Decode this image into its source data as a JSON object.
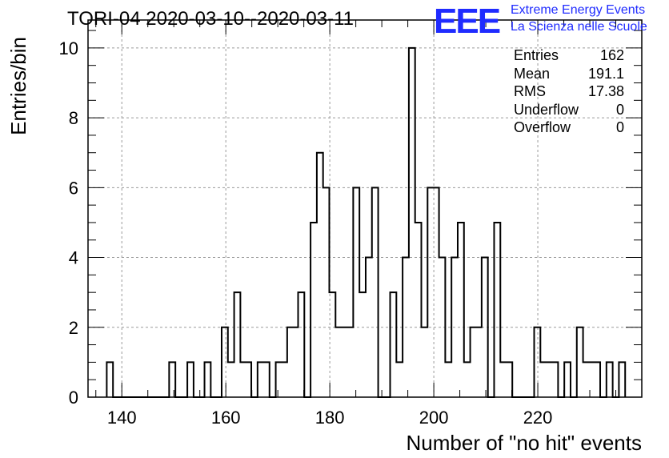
{
  "chart_data": {
    "type": "histogram",
    "title": "TORI-04 2020-03-10--2020-03-11",
    "xlabel": "Number of \"no hit\" events",
    "ylabel": "Entries/bin",
    "xlim": [
      133.5,
      240
    ],
    "ylim": [
      0,
      10.8
    ],
    "bin_width": 1.2,
    "x_ticks": [
      140,
      160,
      180,
      200,
      220
    ],
    "y_ticks": [
      0,
      2,
      4,
      6,
      8,
      10
    ],
    "grid": true,
    "bin_edges": [
      137.1,
      138.3,
      149.1,
      150.3,
      152.6,
      153.8,
      155.9,
      157.1,
      159.2,
      160.4,
      161.6,
      162.8,
      164.9,
      166.1,
      168.4,
      169.6,
      171.8,
      173.9,
      175.1,
      176.3,
      177.5,
      178.7,
      179.9,
      181.1,
      184.5,
      185.7,
      186.9,
      188.1,
      189.3,
      191.6,
      192.8,
      194.0,
      195.2,
      196.4,
      197.6,
      198.8,
      201.0,
      202.2,
      203.4,
      204.6,
      205.8,
      207.0,
      209.2,
      210.4,
      211.6,
      212.8,
      215.1,
      219.3,
      220.5,
      223.9,
      225.1,
      226.3,
      227.5,
      228.7,
      232.0,
      233.2,
      234.4,
      235.6
    ],
    "bin_counts": [
      1,
      0,
      1,
      0,
      1,
      0,
      1,
      0,
      2,
      1,
      3,
      1,
      0,
      1,
      0,
      1,
      2,
      3,
      0,
      5,
      7,
      6,
      3,
      2,
      6,
      3,
      4,
      6,
      0,
      3,
      1,
      4,
      10,
      5,
      2,
      6,
      4,
      1,
      4,
      5,
      1,
      2,
      4,
      0,
      5,
      1,
      0,
      2,
      1,
      0,
      1,
      0,
      2,
      1,
      0,
      1,
      0,
      1
    ]
  },
  "stats": {
    "rows": [
      {
        "label": "Entries",
        "value": "162"
      },
      {
        "label": "Mean",
        "value": "191.1"
      },
      {
        "label": "RMS",
        "value": "17.38"
      },
      {
        "label": "Underflow",
        "value": "0"
      },
      {
        "label": "Overflow",
        "value": "0"
      }
    ]
  },
  "logo": {
    "mark": "EEE",
    "line1": "Extreme Energy Events",
    "line2": "La Scienza nelle Scuole",
    "color": "#1f2bff"
  }
}
